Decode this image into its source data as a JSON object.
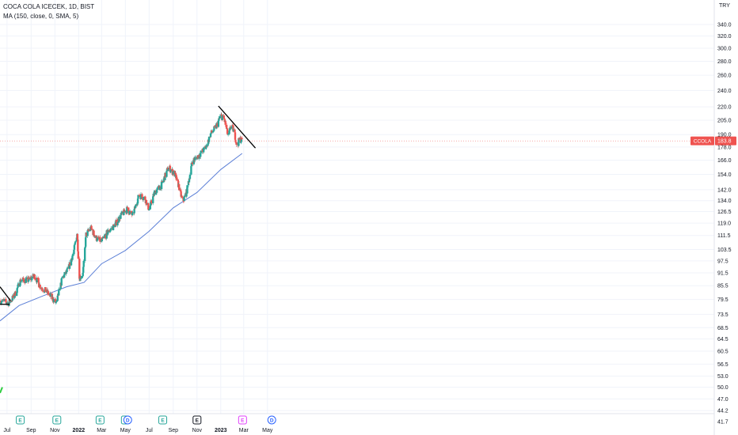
{
  "legend": {
    "symbol_line": "COCA COLA ICECEK, 1D, BIST",
    "indicator_line": "MA (150, close, 0, SMA, 5)"
  },
  "chart_data": {
    "type": "candlestick",
    "title": "COCA COLA ICECEK, 1D, BIST",
    "currency": "TRY",
    "scale": "log",
    "grid": true,
    "ylim": [
      41.7,
      352
    ],
    "price_ticks": [
      340.0,
      320.0,
      300.0,
      280.0,
      260.0,
      240.0,
      220.0,
      205.0,
      190.0,
      178.0,
      166.0,
      154.0,
      142.0,
      134.0,
      126.5,
      119.0,
      111.5,
      103.5,
      97.5,
      91.5,
      85.5,
      79.5,
      73.5,
      68.5,
      64.5,
      60.5,
      56.5,
      53.0,
      50.0,
      47.0,
      44.2,
      41.7
    ],
    "price_tick_labels": [
      "340.0",
      "320.0",
      "300.0",
      "280.0",
      "260.0",
      "240.0",
      "220.0",
      "205.0",
      "190.0",
      "178.0",
      "166.0",
      "154.0",
      "142.0",
      "134.0",
      "126.5",
      "119.0",
      "111.5",
      "103.5",
      "97.5",
      "91.5",
      "85.5",
      "79.5",
      "73.5",
      "68.5",
      "64.5",
      "60.5",
      "56.5",
      "53.0",
      "50.0",
      "47.0",
      "44.2",
      "41.7"
    ],
    "time_axis": [
      {
        "label": "Jul",
        "date": "2021-07-01"
      },
      {
        "label": "Sep",
        "date": "2021-09-01"
      },
      {
        "label": "Nov",
        "date": "2021-11-01"
      },
      {
        "label": "2022",
        "date": "2022-01-01"
      },
      {
        "label": "Mar",
        "date": "2022-03-01"
      },
      {
        "label": "May",
        "date": "2022-05-01"
      },
      {
        "label": "Jul",
        "date": "2022-07-01"
      },
      {
        "label": "Sep",
        "date": "2022-09-01"
      },
      {
        "label": "Nov",
        "date": "2022-11-01"
      },
      {
        "label": "2023",
        "date": "2023-01-01"
      },
      {
        "label": "Mar",
        "date": "2023-03-01"
      },
      {
        "label": "May",
        "date": "2023-05-01"
      }
    ],
    "price_anchors": [
      {
        "date": "2021-06-15",
        "close": 79
      },
      {
        "date": "2021-07-05",
        "close": 78
      },
      {
        "date": "2021-07-20",
        "close": 81
      },
      {
        "date": "2021-08-05",
        "close": 88
      },
      {
        "date": "2021-08-25",
        "close": 88
      },
      {
        "date": "2021-09-10",
        "close": 90
      },
      {
        "date": "2021-09-25",
        "close": 85
      },
      {
        "date": "2021-10-10",
        "close": 83
      },
      {
        "date": "2021-10-25",
        "close": 80
      },
      {
        "date": "2021-11-05",
        "close": 78
      },
      {
        "date": "2021-11-20",
        "close": 89
      },
      {
        "date": "2021-12-05",
        "close": 93
      },
      {
        "date": "2021-12-20",
        "close": 103
      },
      {
        "date": "2021-12-28",
        "close": 113
      },
      {
        "date": "2022-01-03",
        "close": 89
      },
      {
        "date": "2022-01-12",
        "close": 91
      },
      {
        "date": "2022-01-20",
        "close": 112
      },
      {
        "date": "2022-02-01",
        "close": 116
      },
      {
        "date": "2022-02-15",
        "close": 110
      },
      {
        "date": "2022-03-01",
        "close": 108
      },
      {
        "date": "2022-03-15",
        "close": 113
      },
      {
        "date": "2022-04-01",
        "close": 117
      },
      {
        "date": "2022-04-20",
        "close": 124
      },
      {
        "date": "2022-05-05",
        "close": 128
      },
      {
        "date": "2022-05-20",
        "close": 124
      },
      {
        "date": "2022-06-05",
        "close": 138
      },
      {
        "date": "2022-06-20",
        "close": 136
      },
      {
        "date": "2022-07-01",
        "close": 128
      },
      {
        "date": "2022-07-15",
        "close": 140
      },
      {
        "date": "2022-08-01",
        "close": 145
      },
      {
        "date": "2022-08-20",
        "close": 160
      },
      {
        "date": "2022-09-05",
        "close": 154
      },
      {
        "date": "2022-09-15",
        "close": 145
      },
      {
        "date": "2022-09-25",
        "close": 133
      },
      {
        "date": "2022-10-05",
        "close": 140
      },
      {
        "date": "2022-10-20",
        "close": 165
      },
      {
        "date": "2022-11-05",
        "close": 170
      },
      {
        "date": "2022-11-25",
        "close": 178
      },
      {
        "date": "2022-12-05",
        "close": 190
      },
      {
        "date": "2022-12-20",
        "close": 198
      },
      {
        "date": "2023-01-01",
        "close": 210
      },
      {
        "date": "2023-01-10",
        "close": 206
      },
      {
        "date": "2023-01-20",
        "close": 188
      },
      {
        "date": "2023-01-28",
        "close": 200
      },
      {
        "date": "2023-02-05",
        "close": 192
      },
      {
        "date": "2023-02-12",
        "close": 178
      },
      {
        "date": "2023-02-18",
        "close": 186
      },
      {
        "date": "2023-02-25",
        "close": 183.8
      }
    ],
    "series": [
      {
        "name": "COCA COLA ICECEK",
        "kind": "candles",
        "up_color": "#26a69a",
        "down_color": "#ef5350"
      },
      {
        "name": "MA (150, close, 0, SMA, 5)",
        "kind": "line",
        "color": "#5b7fd6",
        "points": [
          {
            "date": "2021-06-13",
            "value": 71
          },
          {
            "date": "2021-08-01",
            "value": 77
          },
          {
            "date": "2021-10-01",
            "value": 81
          },
          {
            "date": "2021-12-01",
            "value": 85
          },
          {
            "date": "2022-01-15",
            "value": 87
          },
          {
            "date": "2022-03-01",
            "value": 96
          },
          {
            "date": "2022-05-01",
            "value": 103
          },
          {
            "date": "2022-07-01",
            "value": 114
          },
          {
            "date": "2022-09-01",
            "value": 129
          },
          {
            "date": "2022-11-01",
            "value": 140
          },
          {
            "date": "2023-01-01",
            "value": 158
          },
          {
            "date": "2023-02-25",
            "value": 172
          }
        ]
      }
    ],
    "trendlines": [
      {
        "name": "descending-trendline",
        "color": "#000000",
        "from": {
          "date": "2022-12-26",
          "value": 221
        },
        "to": {
          "date": "2023-03-31",
          "value": 177
        }
      },
      {
        "name": "short-trendline",
        "color": "#000000",
        "from": {
          "date": "2021-06-13",
          "value": 85
        },
        "to": {
          "date": "2021-07-10",
          "value": 79
        }
      },
      {
        "name": "support-line",
        "color": "#000000",
        "from": {
          "date": "2021-06-13",
          "value": 77.5
        },
        "to": {
          "date": "2021-07-08",
          "value": 77.5
        }
      },
      {
        "name": "green-scribble",
        "color": "#2ecc40",
        "from": {
          "date": "2021-06-13",
          "value": 48.5
        },
        "to": {
          "date": "2021-06-19",
          "value": 50
        }
      }
    ],
    "last_price": {
      "symbol": "CCOLA",
      "value": "183.8",
      "color": "#ef5350"
    },
    "events": [
      {
        "type": "E",
        "date": "2021-08-04",
        "kind": "earnings"
      },
      {
        "type": "E",
        "date": "2021-11-06",
        "kind": "earnings"
      },
      {
        "type": "E",
        "date": "2022-02-25",
        "kind": "earnings"
      },
      {
        "type": "E",
        "date": "2022-05-01",
        "kind": "earnings"
      },
      {
        "type": "D",
        "date": "2022-05-07",
        "kind": "dividend"
      },
      {
        "type": "E",
        "date": "2022-08-05",
        "kind": "earnings"
      },
      {
        "type": "E",
        "date": "2022-11-01",
        "kind": "earnings-dark"
      },
      {
        "type": "E",
        "date": "2023-02-26",
        "kind": "earnings-future"
      },
      {
        "type": "D",
        "date": "2023-05-12",
        "kind": "dividend-future"
      }
    ]
  }
}
